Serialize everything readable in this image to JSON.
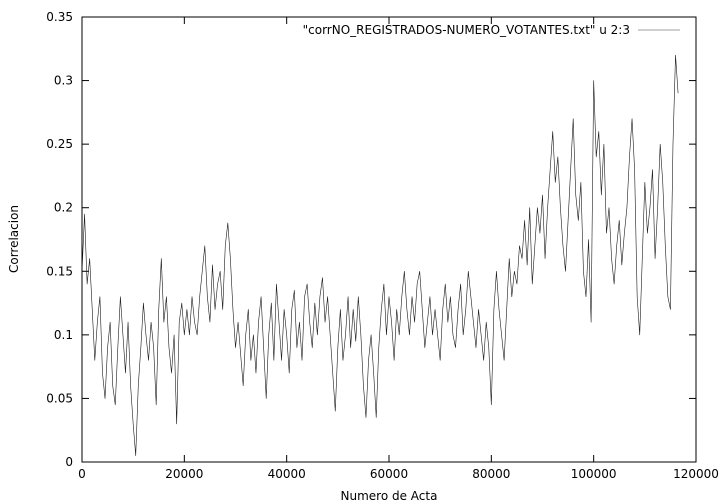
{
  "chart_data": {
    "type": "line",
    "title": "",
    "xlabel": "Numero de Acta",
    "ylabel": "Correlacion",
    "xlim": [
      0,
      120000
    ],
    "ylim": [
      0,
      0.35
    ],
    "x_ticks": [
      0,
      20000,
      40000,
      60000,
      80000,
      100000,
      120000
    ],
    "y_ticks": [
      0,
      0.05,
      0.1,
      0.15,
      0.2,
      0.25,
      0.3,
      0.35
    ],
    "x_tick_labels": [
      "0",
      "20000",
      "40000",
      "60000",
      "80000",
      "100000",
      "120000"
    ],
    "y_tick_labels": [
      "0",
      "0.05",
      "0.1",
      "0.15",
      "0.2",
      "0.25",
      "0.3",
      "0.35"
    ],
    "grid": false,
    "legend_position": "top-right",
    "series_color": "#1a1a1a",
    "legend_line_color": "#a0a0a0",
    "series": [
      {
        "name": "\"corrNO_REGISTRADOS-NUMERO_VOTANTES.txt\" u 2:3",
        "points": [
          [
            0,
            0.15
          ],
          [
            500,
            0.195
          ],
          [
            1000,
            0.14
          ],
          [
            1500,
            0.16
          ],
          [
            2000,
            0.12
          ],
          [
            2500,
            0.08
          ],
          [
            3000,
            0.11
          ],
          [
            3500,
            0.13
          ],
          [
            4000,
            0.07
          ],
          [
            4500,
            0.05
          ],
          [
            5000,
            0.09
          ],
          [
            5500,
            0.11
          ],
          [
            6000,
            0.06
          ],
          [
            6500,
            0.045
          ],
          [
            7000,
            0.09
          ],
          [
            7500,
            0.13
          ],
          [
            8000,
            0.1
          ],
          [
            8500,
            0.07
          ],
          [
            9000,
            0.11
          ],
          [
            9500,
            0.06
          ],
          [
            10000,
            0.03
          ],
          [
            10500,
            0.005
          ],
          [
            11000,
            0.06
          ],
          [
            11500,
            0.09
          ],
          [
            12000,
            0.125
          ],
          [
            12500,
            0.1
          ],
          [
            13000,
            0.08
          ],
          [
            13500,
            0.11
          ],
          [
            14000,
            0.09
          ],
          [
            14500,
            0.045
          ],
          [
            15000,
            0.12
          ],
          [
            15500,
            0.16
          ],
          [
            16000,
            0.11
          ],
          [
            16500,
            0.13
          ],
          [
            17000,
            0.09
          ],
          [
            17500,
            0.07
          ],
          [
            18000,
            0.1
          ],
          [
            18500,
            0.03
          ],
          [
            19000,
            0.11
          ],
          [
            19500,
            0.125
          ],
          [
            20000,
            0.1
          ],
          [
            20500,
            0.12
          ],
          [
            21000,
            0.1
          ],
          [
            21500,
            0.13
          ],
          [
            22000,
            0.11
          ],
          [
            22500,
            0.1
          ],
          [
            23000,
            0.13
          ],
          [
            23500,
            0.15
          ],
          [
            24000,
            0.17
          ],
          [
            24500,
            0.13
          ],
          [
            25000,
            0.11
          ],
          [
            25500,
            0.155
          ],
          [
            26000,
            0.12
          ],
          [
            26500,
            0.14
          ],
          [
            27000,
            0.15
          ],
          [
            27500,
            0.12
          ],
          [
            28000,
            0.17
          ],
          [
            28500,
            0.188
          ],
          [
            29000,
            0.16
          ],
          [
            29500,
            0.12
          ],
          [
            30000,
            0.09
          ],
          [
            30500,
            0.11
          ],
          [
            31000,
            0.085
          ],
          [
            31500,
            0.06
          ],
          [
            32000,
            0.1
          ],
          [
            32500,
            0.12
          ],
          [
            33000,
            0.08
          ],
          [
            33500,
            0.1
          ],
          [
            34000,
            0.07
          ],
          [
            34500,
            0.11
          ],
          [
            35000,
            0.13
          ],
          [
            35500,
            0.09
          ],
          [
            36000,
            0.05
          ],
          [
            36500,
            0.1
          ],
          [
            37000,
            0.125
          ],
          [
            37500,
            0.08
          ],
          [
            38000,
            0.14
          ],
          [
            38500,
            0.11
          ],
          [
            39000,
            0.08
          ],
          [
            39500,
            0.12
          ],
          [
            40000,
            0.1
          ],
          [
            40500,
            0.07
          ],
          [
            41000,
            0.12
          ],
          [
            41500,
            0.135
          ],
          [
            42000,
            0.09
          ],
          [
            42500,
            0.11
          ],
          [
            43000,
            0.08
          ],
          [
            43500,
            0.13
          ],
          [
            44000,
            0.14
          ],
          [
            44500,
            0.11
          ],
          [
            45000,
            0.09
          ],
          [
            45500,
            0.125
          ],
          [
            46000,
            0.1
          ],
          [
            46500,
            0.13
          ],
          [
            47000,
            0.145
          ],
          [
            47500,
            0.11
          ],
          [
            48000,
            0.13
          ],
          [
            48500,
            0.1
          ],
          [
            49000,
            0.07
          ],
          [
            49500,
            0.04
          ],
          [
            50000,
            0.09
          ],
          [
            50500,
            0.12
          ],
          [
            51000,
            0.08
          ],
          [
            51500,
            0.1
          ],
          [
            52000,
            0.13
          ],
          [
            52500,
            0.09
          ],
          [
            53000,
            0.12
          ],
          [
            53500,
            0.095
          ],
          [
            54000,
            0.13
          ],
          [
            54500,
            0.1
          ],
          [
            55000,
            0.06
          ],
          [
            55500,
            0.035
          ],
          [
            56000,
            0.08
          ],
          [
            56500,
            0.1
          ],
          [
            57000,
            0.07
          ],
          [
            57500,
            0.035
          ],
          [
            58000,
            0.09
          ],
          [
            58500,
            0.12
          ],
          [
            59000,
            0.14
          ],
          [
            59500,
            0.1
          ],
          [
            60000,
            0.13
          ],
          [
            60500,
            0.11
          ],
          [
            61000,
            0.08
          ],
          [
            61500,
            0.12
          ],
          [
            62000,
            0.1
          ],
          [
            62500,
            0.13
          ],
          [
            63000,
            0.15
          ],
          [
            63500,
            0.12
          ],
          [
            64000,
            0.1
          ],
          [
            64500,
            0.13
          ],
          [
            65000,
            0.11
          ],
          [
            65500,
            0.14
          ],
          [
            66000,
            0.15
          ],
          [
            66500,
            0.12
          ],
          [
            67000,
            0.09
          ],
          [
            67500,
            0.11
          ],
          [
            68000,
            0.13
          ],
          [
            68500,
            0.1
          ],
          [
            69000,
            0.12
          ],
          [
            69500,
            0.1
          ],
          [
            70000,
            0.08
          ],
          [
            70500,
            0.12
          ],
          [
            71000,
            0.14
          ],
          [
            71500,
            0.11
          ],
          [
            72000,
            0.13
          ],
          [
            72500,
            0.1
          ],
          [
            73000,
            0.09
          ],
          [
            73500,
            0.12
          ],
          [
            74000,
            0.14
          ],
          [
            74500,
            0.1
          ],
          [
            75000,
            0.12
          ],
          [
            75500,
            0.15
          ],
          [
            76000,
            0.13
          ],
          [
            76500,
            0.11
          ],
          [
            77000,
            0.09
          ],
          [
            77500,
            0.12
          ],
          [
            78000,
            0.1
          ],
          [
            78500,
            0.08
          ],
          [
            79000,
            0.11
          ],
          [
            79500,
            0.09
          ],
          [
            80000,
            0.045
          ],
          [
            80500,
            0.12
          ],
          [
            81000,
            0.15
          ],
          [
            81500,
            0.12
          ],
          [
            82000,
            0.1
          ],
          [
            82500,
            0.08
          ],
          [
            83000,
            0.12
          ],
          [
            83500,
            0.16
          ],
          [
            84000,
            0.13
          ],
          [
            84500,
            0.15
          ],
          [
            85000,
            0.14
          ],
          [
            85500,
            0.17
          ],
          [
            86000,
            0.16
          ],
          [
            86500,
            0.19
          ],
          [
            87000,
            0.155
          ],
          [
            87500,
            0.2
          ],
          [
            88000,
            0.14
          ],
          [
            88500,
            0.17
          ],
          [
            89000,
            0.2
          ],
          [
            89500,
            0.18
          ],
          [
            90000,
            0.21
          ],
          [
            90500,
            0.16
          ],
          [
            91000,
            0.2
          ],
          [
            91500,
            0.23
          ],
          [
            92000,
            0.26
          ],
          [
            92500,
            0.22
          ],
          [
            93000,
            0.24
          ],
          [
            93500,
            0.2
          ],
          [
            94000,
            0.17
          ],
          [
            94500,
            0.15
          ],
          [
            95000,
            0.19
          ],
          [
            95500,
            0.23
          ],
          [
            96000,
            0.27
          ],
          [
            96500,
            0.21
          ],
          [
            97000,
            0.19
          ],
          [
            97500,
            0.22
          ],
          [
            98000,
            0.15
          ],
          [
            98500,
            0.13
          ],
          [
            99000,
            0.175
          ],
          [
            99500,
            0.11
          ],
          [
            100000,
            0.3
          ],
          [
            100500,
            0.24
          ],
          [
            101000,
            0.26
          ],
          [
            101500,
            0.21
          ],
          [
            102000,
            0.25
          ],
          [
            102500,
            0.18
          ],
          [
            103000,
            0.2
          ],
          [
            103500,
            0.16
          ],
          [
            104000,
            0.14
          ],
          [
            104500,
            0.17
          ],
          [
            105000,
            0.19
          ],
          [
            105500,
            0.155
          ],
          [
            106000,
            0.18
          ],
          [
            106500,
            0.2
          ],
          [
            107000,
            0.24
          ],
          [
            107500,
            0.27
          ],
          [
            108000,
            0.23
          ],
          [
            108500,
            0.13
          ],
          [
            109000,
            0.1
          ],
          [
            109500,
            0.16
          ],
          [
            110000,
            0.22
          ],
          [
            110500,
            0.18
          ],
          [
            111000,
            0.2
          ],
          [
            111500,
            0.23
          ],
          [
            112000,
            0.16
          ],
          [
            112500,
            0.2
          ],
          [
            113000,
            0.25
          ],
          [
            113500,
            0.22
          ],
          [
            114000,
            0.17
          ],
          [
            114500,
            0.13
          ],
          [
            115000,
            0.12
          ],
          [
            115500,
            0.25
          ],
          [
            116000,
            0.32
          ],
          [
            116500,
            0.29
          ]
        ]
      }
    ]
  }
}
